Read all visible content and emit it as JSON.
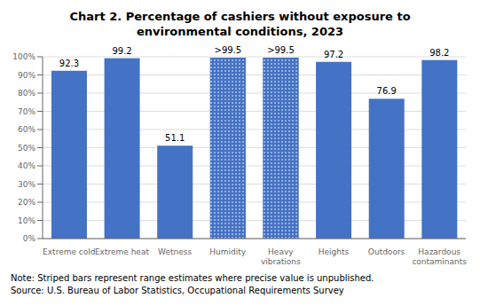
{
  "chart_data": {
    "type": "bar",
    "title": "Chart 2. Percentage of cashiers without exposure to\nenvironmental conditions, 2023",
    "categories": [
      "Extreme cold",
      "Extreme heat",
      "Wetness",
      "Humidity",
      "Heavy\nvibrations",
      "Heights",
      "Outdoors",
      "Hazardous\ncontaminants"
    ],
    "values": [
      92.3,
      99.2,
      51.1,
      99.5,
      99.5,
      97.2,
      76.9,
      98.2
    ],
    "value_labels": [
      "92.3",
      "99.2",
      "51.1",
      ">99.5",
      ">99.5",
      "97.2",
      "76.9",
      "98.2"
    ],
    "data_labels": true,
    "color": "#4472C4",
    "ylim": [
      0,
      100
    ],
    "yticks": [
      {
        "value": 0,
        "label": "0%"
      },
      {
        "value": 10,
        "label": "10%"
      },
      {
        "value": 20,
        "label": "20%"
      },
      {
        "value": 30,
        "label": "30%"
      },
      {
        "value": 40,
        "label": "40%"
      },
      {
        "value": 50,
        "label": "50%"
      },
      {
        "value": 60,
        "label": "60%"
      },
      {
        "value": 70,
        "label": "70%"
      },
      {
        "value": 80,
        "label": "80%"
      },
      {
        "value": 90,
        "label": "90%"
      },
      {
        "value": 100,
        "label": "100%"
      }
    ],
    "grid": true,
    "annotations": [
      "Note: Striped bars represent range estimates where precise value is unpublished.",
      "Source: U.S. Bureau of Labor Statistics, Occupational Requirements Survey"
    ]
  }
}
